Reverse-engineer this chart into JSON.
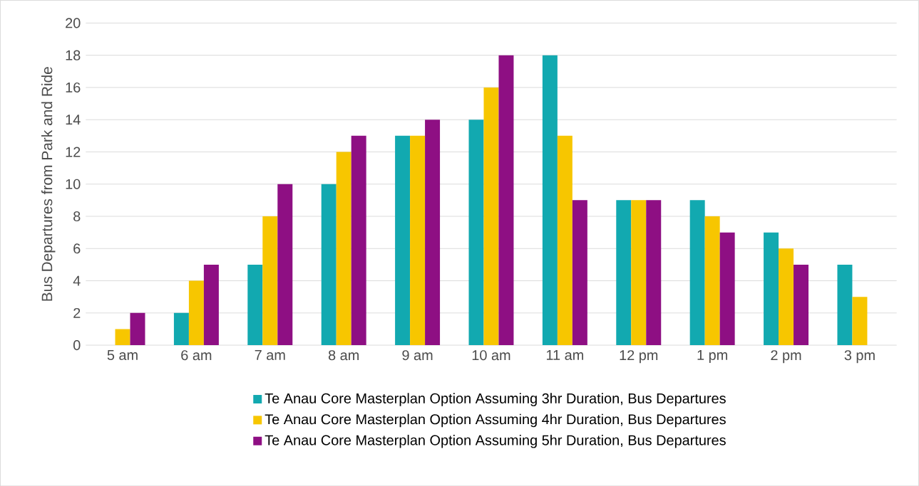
{
  "chart_data": {
    "type": "bar",
    "ylabel": "Bus Departures from Park and Ride",
    "categories": [
      "5 am",
      "6 am",
      "7 am",
      "8 am",
      "9 am",
      "10 am",
      "11 am",
      "12 pm",
      "1 pm",
      "2 pm",
      "3 pm"
    ],
    "series": [
      {
        "name": "Te Anau Core Masterplan Option Assuming 3hr Duration, Bus Departures",
        "color": "#12a9b0",
        "values": [
          0,
          2,
          5,
          10,
          13,
          14,
          18,
          9,
          9,
          7,
          5
        ]
      },
      {
        "name": "Te Anau Core Masterplan Option Assuming 4hr Duration, Bus Departures",
        "color": "#f7c600",
        "values": [
          1,
          4,
          8,
          12,
          13,
          16,
          13,
          9,
          8,
          6,
          3
        ]
      },
      {
        "name": "Te Anau Core Masterplan Option Assuming 5hr Duration, Bus Departures",
        "color": "#8e0f83",
        "values": [
          2,
          5,
          10,
          13,
          14,
          18,
          9,
          9,
          7,
          5,
          0
        ]
      }
    ],
    "ylim": [
      0,
      20
    ],
    "yticks": [
      0,
      2,
      4,
      6,
      8,
      10,
      12,
      14,
      16,
      18,
      20
    ],
    "grid": "y",
    "legend": "bottom"
  }
}
